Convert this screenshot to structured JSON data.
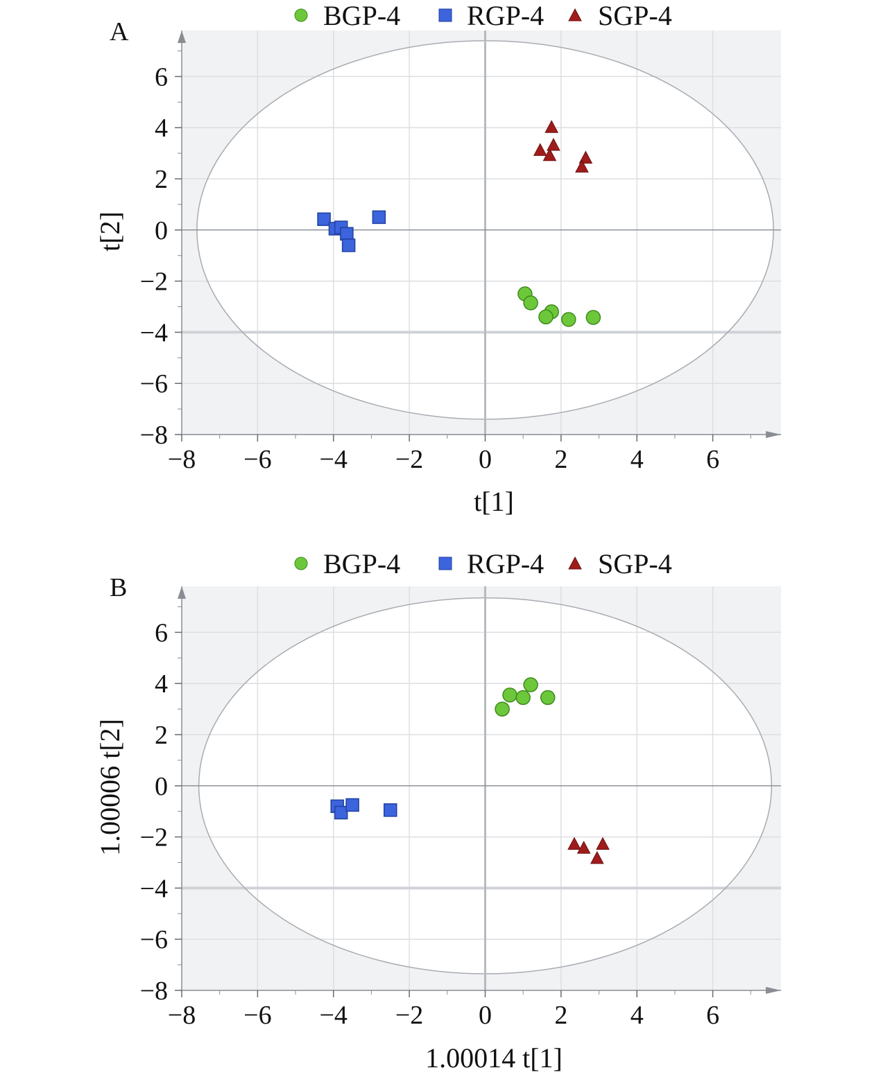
{
  "chart_data": [
    {
      "panel_label": "A",
      "type": "scatter",
      "title": "",
      "xlabel": "t[1]",
      "ylabel": "t[2]",
      "xlim": [
        -8,
        7.8
      ],
      "ylim": [
        -8,
        7.8
      ],
      "xticks": [
        "−8",
        "−6",
        "−4",
        "−2",
        "0",
        "2",
        "4",
        "6"
      ],
      "yticks": [
        "−8",
        "−6",
        "−4",
        "−2",
        "0",
        "2",
        "4",
        "6"
      ],
      "grid": true,
      "legend_position": "top",
      "ellipse": {
        "rx": 7.6,
        "ry": 7.4
      },
      "series": [
        {
          "name": "BGP-4",
          "marker": "circle",
          "color": "#6cc83a",
          "points": [
            [
              1.05,
              -2.5
            ],
            [
              1.2,
              -2.85
            ],
            [
              1.75,
              -3.2
            ],
            [
              1.6,
              -3.4
            ],
            [
              2.2,
              -3.5
            ],
            [
              2.85,
              -3.42
            ]
          ]
        },
        {
          "name": "RGP-4",
          "marker": "square",
          "color": "#3c64dc",
          "points": [
            [
              -4.25,
              0.42
            ],
            [
              -3.95,
              0.05
            ],
            [
              -3.8,
              0.1
            ],
            [
              -3.65,
              -0.15
            ],
            [
              -3.6,
              -0.6
            ],
            [
              -2.8,
              0.5
            ]
          ]
        },
        {
          "name": "SGP-4",
          "marker": "triangle",
          "color": "#a01c1c",
          "points": [
            [
              1.75,
              4.0
            ],
            [
              1.45,
              3.1
            ],
            [
              1.7,
              2.9
            ],
            [
              1.8,
              3.3
            ],
            [
              2.65,
              2.8
            ],
            [
              2.55,
              2.45
            ]
          ]
        }
      ]
    },
    {
      "panel_label": "B",
      "type": "scatter",
      "title": "",
      "xlabel": "1.00014 t[1]",
      "ylabel": "1.00006 t[2]",
      "xlim": [
        -8,
        7.8
      ],
      "ylim": [
        -8,
        7.8
      ],
      "xticks": [
        "−8",
        "−6",
        "−4",
        "−2",
        "0",
        "2",
        "4",
        "6"
      ],
      "yticks": [
        "−8",
        "−6",
        "−4",
        "−2",
        "0",
        "2",
        "4",
        "6"
      ],
      "grid": true,
      "legend_position": "top",
      "ellipse": {
        "rx": 7.55,
        "ry": 7.35
      },
      "series": [
        {
          "name": "BGP-4",
          "marker": "circle",
          "color": "#6cc83a",
          "points": [
            [
              0.45,
              3.0
            ],
            [
              0.65,
              3.55
            ],
            [
              1.0,
              3.45
            ],
            [
              1.2,
              3.95
            ],
            [
              1.65,
              3.45
            ]
          ]
        },
        {
          "name": "RGP-4",
          "marker": "square",
          "color": "#3c64dc",
          "points": [
            [
              -3.9,
              -0.8
            ],
            [
              -3.8,
              -1.05
            ],
            [
              -3.5,
              -0.75
            ],
            [
              -2.5,
              -0.95
            ]
          ]
        },
        {
          "name": "SGP-4",
          "marker": "triangle",
          "color": "#a01c1c",
          "points": [
            [
              2.35,
              -2.3
            ],
            [
              2.6,
              -2.45
            ],
            [
              2.95,
              -2.85
            ],
            [
              3.1,
              -2.3
            ]
          ]
        }
      ]
    }
  ]
}
